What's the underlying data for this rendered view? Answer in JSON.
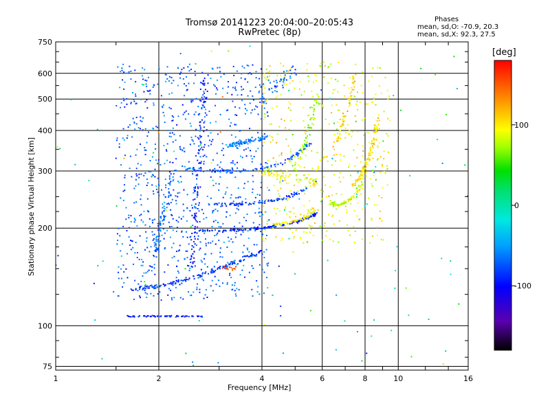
{
  "chart_data": {
    "type": "scatter",
    "title": "Tromsø 20141223 20:04:00–20:05:43",
    "subtitle": "RwPretec (8p)",
    "xlabel": "Frequency [MHz]",
    "ylabel": "Stationary phase Virtual Height [km]",
    "x_scale": "log",
    "y_scale": "log",
    "xlim": [
      1,
      16
    ],
    "ylim": [
      73,
      750
    ],
    "xticks": [
      1,
      2,
      4,
      6,
      8,
      10,
      16
    ],
    "yticks": [
      75,
      100,
      200,
      300,
      400,
      500,
      600,
      750
    ],
    "grid": true,
    "phase_box": {
      "title": "Phases",
      "line1": "mean, sd,O: -70.9, 20.3",
      "line2": "mean, sd,X:  92.3, 27.5"
    },
    "colorbar": {
      "label": "[deg]",
      "ticks": [
        100,
        0,
        -100
      ],
      "range": [
        -180,
        180
      ],
      "colormap": "rainbow"
    },
    "traces": [
      {
        "x": [
          1.68,
          1.85,
          2.05,
          2.25,
          2.6,
          3.0,
          3.5,
          4.0
        ],
        "y": [
          130,
          131,
          133,
          136,
          142,
          150,
          160,
          170
        ],
        "phase": -85,
        "n": 160,
        "spread": 0.012
      },
      {
        "x": [
          1.62,
          1.8,
          2.0,
          2.3,
          2.7
        ],
        "y": [
          107,
          107,
          107,
          107,
          107
        ],
        "phase": -95,
        "n": 70,
        "spread": 0.004
      },
      {
        "x": [
          2.6,
          3.0,
          3.5,
          4.0,
          4.6,
          5.2,
          5.8
        ],
        "y": [
          197,
          196,
          198,
          200,
          204,
          211,
          222
        ],
        "phase": -90,
        "n": 150,
        "spread": 0.008
      },
      {
        "x": [
          2.8,
          3.2,
          3.7,
          4.2,
          4.8,
          5.4
        ],
        "y": [
          238,
          236,
          238,
          242,
          250,
          265
        ],
        "phase": -80,
        "n": 110,
        "spread": 0.008
      },
      {
        "x": [
          2.4,
          2.9,
          3.4,
          4.0,
          4.6,
          5.1,
          5.6
        ],
        "y": [
          305,
          300,
          300,
          305,
          318,
          340,
          370
        ],
        "phase": -75,
        "n": 110,
        "spread": 0.01
      },
      {
        "x": [
          2.5,
          2.55,
          2.6,
          2.65,
          2.7,
          2.75
        ],
        "y": [
          150,
          200,
          280,
          380,
          480,
          600
        ],
        "phase": -95,
        "n": 120,
        "spread": 0.02
      },
      {
        "x": [
          1.9,
          2.0,
          2.1,
          2.2
        ],
        "y": [
          150,
          190,
          240,
          300
        ],
        "phase": -70,
        "n": 90,
        "spread": 0.025
      },
      {
        "x": [
          3.2,
          3.4,
          3.6,
          3.9,
          4.1
        ],
        "y": [
          360,
          365,
          370,
          375,
          380
        ],
        "phase": -60,
        "n": 80,
        "spread": 0.015
      },
      {
        "x": [
          4.4,
          4.8,
          5.2,
          5.5,
          5.7
        ],
        "y": [
          205,
          208,
          212,
          220,
          230
        ],
        "phase": 100,
        "n": 60,
        "spread": 0.01
      },
      {
        "x": [
          6.3,
          6.6,
          7.0,
          7.4,
          7.8
        ],
        "y": [
          240,
          235,
          240,
          250,
          270
        ],
        "phase": 80,
        "n": 90,
        "spread": 0.012
      },
      {
        "x": [
          7.4,
          7.8,
          8.2,
          8.5,
          8.8
        ],
        "y": [
          270,
          290,
          330,
          380,
          440
        ],
        "phase": 105,
        "n": 110,
        "spread": 0.012
      },
      {
        "x": [
          6.5,
          6.9,
          7.2,
          7.5
        ],
        "y": [
          350,
          420,
          500,
          600
        ],
        "phase": 110,
        "n": 60,
        "spread": 0.015
      },
      {
        "x": [
          4.0,
          4.4,
          4.9,
          5.4,
          5.8
        ],
        "y": [
          300,
          290,
          285,
          280,
          275
        ],
        "phase": 95,
        "n": 60,
        "spread": 0.02
      },
      {
        "x": [
          5.0,
          5.3,
          5.6,
          5.8
        ],
        "y": [
          300,
          360,
          430,
          520
        ],
        "phase": 70,
        "n": 60,
        "spread": 0.02
      },
      {
        "x": [
          3.6,
          4.0,
          4.5,
          5.0
        ],
        "y": [
          450,
          500,
          560,
          620
        ],
        "phase": -70,
        "n": 60,
        "spread": 0.03
      },
      {
        "x": [
          3.0,
          3.2,
          3.35
        ],
        "y": [
          150,
          150,
          150
        ],
        "phase": 150,
        "n": 15,
        "spread": 0.01
      }
    ],
    "scatter_clouds": [
      {
        "xlim": [
          1.5,
          4.2
        ],
        "ylim": [
          120,
          640
        ],
        "phase_mean": -70,
        "phase_sd": 25,
        "n": 900
      },
      {
        "xlim": [
          4.0,
          9.5
        ],
        "ylim": [
          180,
          650
        ],
        "phase_mean": 92,
        "phase_sd": 28,
        "n": 450
      },
      {
        "xlim": [
          1.0,
          16
        ],
        "ylim": [
          75,
          750
        ],
        "phase_mean": 0,
        "phase_sd": 90,
        "n": 120
      }
    ]
  }
}
